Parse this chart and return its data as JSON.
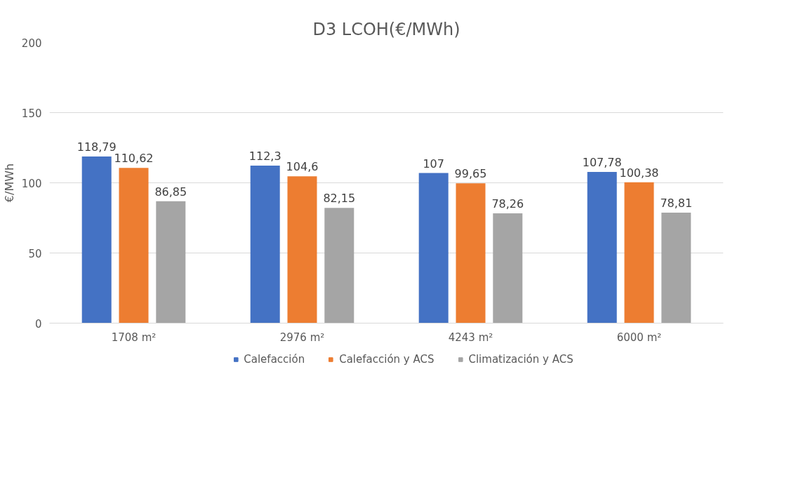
{
  "chart_data": {
    "type": "bar",
    "title": "D3 LCOH(€/MWh)",
    "ylabel": "€/MWh",
    "categories": [
      "1708 m²",
      "2976 m²",
      "4243 m²",
      "6000 m²"
    ],
    "series": [
      {
        "name": "Calefacción",
        "color": "#4472c4",
        "values": [
          118.79,
          112.3,
          107,
          107.78
        ],
        "value_labels": [
          "118,79",
          "112,3",
          "107",
          "107,78"
        ]
      },
      {
        "name": "Calefacción y ACS",
        "color": "#ed7d31",
        "values": [
          110.62,
          104.6,
          99.65,
          100.38
        ],
        "value_labels": [
          "110,62",
          "104,6",
          "99,65",
          "100,38"
        ]
      },
      {
        "name": "Climatización y ACS",
        "color": "#a5a5a5",
        "values": [
          86.85,
          82.15,
          78.26,
          78.81
        ],
        "value_labels": [
          "86,85",
          "82,15",
          "78,26",
          "78,81"
        ]
      }
    ],
    "ylim": [
      0,
      200
    ],
    "yticks": [
      0,
      50,
      100,
      150,
      200
    ],
    "grid": "y",
    "legend": "bottom"
  }
}
